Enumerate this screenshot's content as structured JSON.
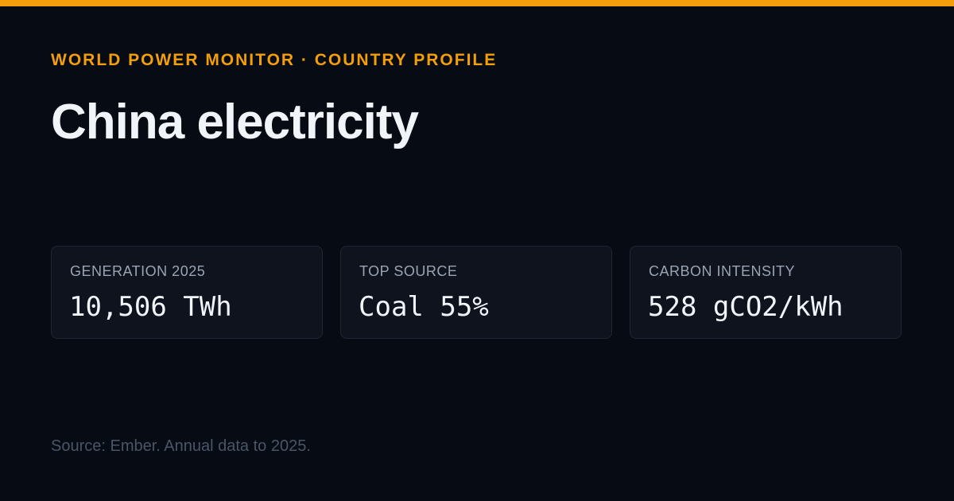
{
  "header": {
    "eyebrow": "WORLD POWER MONITOR · COUNTRY PROFILE",
    "title": "China electricity"
  },
  "cards": [
    {
      "label": "GENERATION 2025",
      "value": "10,506 TWh"
    },
    {
      "label": "TOP SOURCE",
      "value": "Coal 55%"
    },
    {
      "label": "CARBON INTENSITY",
      "value": "528 gCO2/kWh"
    }
  ],
  "footer": {
    "source": "Source: Ember. Annual data to 2025."
  }
}
